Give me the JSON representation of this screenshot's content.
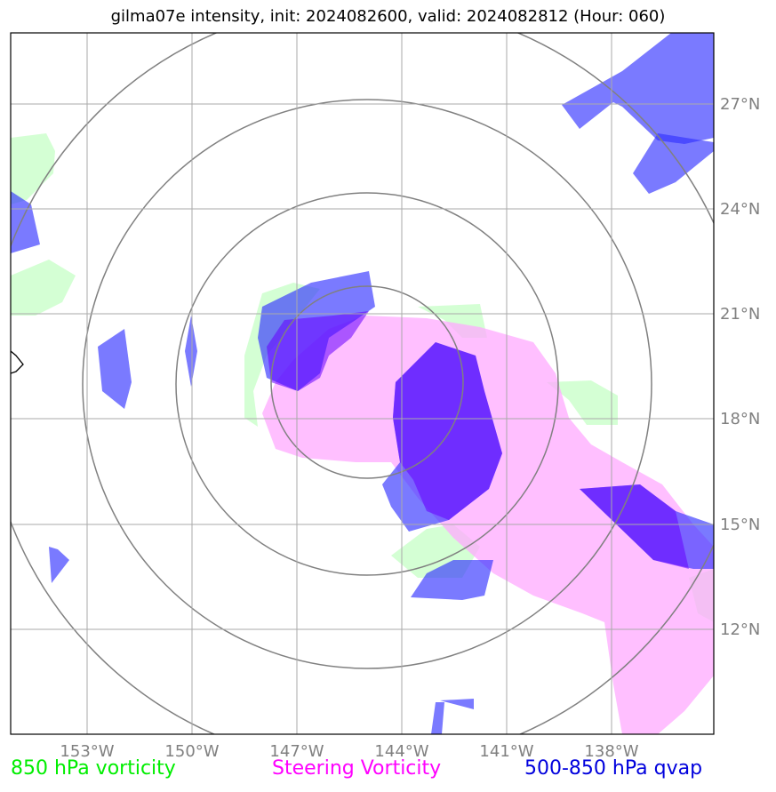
{
  "title": "gilma07e intensity, init: 2024082600, valid: 2024082812 (Hour: 060)",
  "legend": {
    "green": "850 hPa vorticity",
    "magenta": "Steering Vorticity",
    "blue": "500-850 hPa qvap"
  },
  "colors": {
    "green": "#ccffcc",
    "magenta": "#ffaaff",
    "blue": "#3333ff",
    "purple": "#6600ff",
    "grid": "#aaaaaa",
    "rings": "#808080"
  },
  "axes": {
    "lon_labels": [
      "153°W",
      "150°W",
      "147°W",
      "144°W",
      "141°W",
      "138°W"
    ],
    "lat_labels": [
      "27°N",
      "24°N",
      "21°N",
      "18°N",
      "15°N",
      "12°N"
    ]
  }
}
